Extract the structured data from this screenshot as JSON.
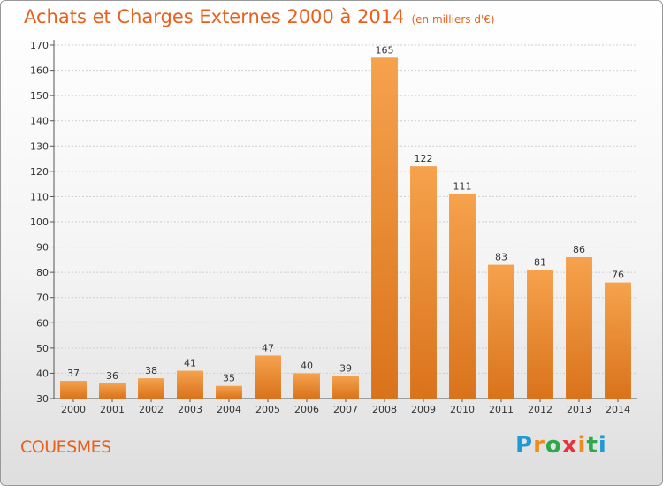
{
  "header": {
    "title": "Achats et Charges Externes 2000 à 2014",
    "subtitle": "(en milliers d'€)"
  },
  "footer": {
    "town": "COUESMES",
    "logo": [
      "P",
      "r",
      "o",
      "x",
      "i",
      "t",
      "i"
    ]
  },
  "colors": {
    "accent": "#e8601c",
    "bar_top": "#f6a24d",
    "bar_bottom": "#d9731b",
    "logo": [
      "#1f9ad6",
      "#f08c1a",
      "#2da84a",
      "#e8323c",
      "#f08c1a",
      "#2da84a",
      "#1f9ad6"
    ]
  },
  "chart_data": {
    "type": "bar",
    "title": "Achats et Charges Externes 2000 à 2014",
    "subtitle": "(en milliers d'€)",
    "xlabel": "",
    "ylabel": "",
    "categories": [
      "2000",
      "2001",
      "2002",
      "2003",
      "2004",
      "2005",
      "2006",
      "2007",
      "2008",
      "2009",
      "2010",
      "2011",
      "2012",
      "2013",
      "2014"
    ],
    "values": [
      37,
      36,
      38,
      41,
      35,
      47,
      40,
      39,
      165,
      122,
      111,
      83,
      81,
      86,
      76
    ],
    "ylim": [
      30,
      170
    ],
    "yticks": [
      30,
      40,
      50,
      60,
      70,
      80,
      90,
      100,
      110,
      120,
      130,
      140,
      150,
      160,
      170
    ],
    "grid": true,
    "legend": "none"
  }
}
